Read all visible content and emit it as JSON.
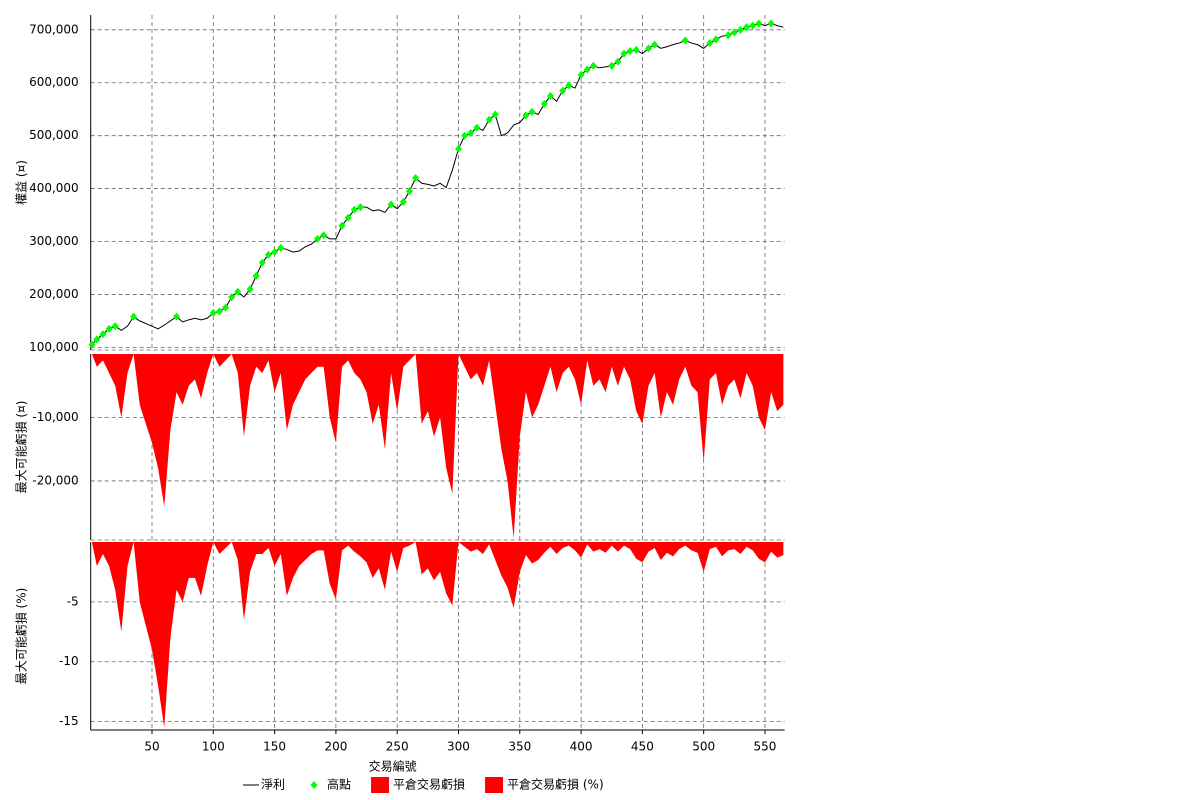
{
  "chart_data": [
    {
      "type": "line",
      "ylabel": "權益 (¤)",
      "xlim": [
        0,
        566
      ],
      "ylim": [
        95000,
        728000
      ],
      "grid": true,
      "yticks": [
        {
          "value": 100000,
          "label": "100,000"
        },
        {
          "value": 200000,
          "label": "200,000"
        },
        {
          "value": 300000,
          "label": "300,000"
        },
        {
          "value": 400000,
          "label": "400,000"
        },
        {
          "value": 500000,
          "label": "500,000"
        },
        {
          "value": 600000,
          "label": "600,000"
        },
        {
          "value": 700000,
          "label": "700,000"
        }
      ],
      "x": [
        1,
        5,
        10,
        15,
        20,
        25,
        30,
        35,
        40,
        45,
        50,
        55,
        60,
        65,
        70,
        75,
        80,
        85,
        90,
        95,
        100,
        105,
        110,
        115,
        120,
        125,
        130,
        135,
        140,
        145,
        150,
        155,
        160,
        165,
        170,
        175,
        180,
        185,
        190,
        195,
        200,
        205,
        210,
        215,
        220,
        225,
        230,
        235,
        240,
        245,
        250,
        255,
        260,
        265,
        270,
        275,
        280,
        285,
        290,
        295,
        300,
        305,
        310,
        315,
        320,
        325,
        330,
        335,
        340,
        345,
        350,
        355,
        360,
        365,
        370,
        375,
        380,
        385,
        390,
        395,
        400,
        405,
        410,
        415,
        420,
        425,
        430,
        435,
        440,
        445,
        450,
        455,
        460,
        465,
        470,
        475,
        480,
        485,
        490,
        495,
        500,
        505,
        510,
        515,
        520,
        525,
        530,
        535,
        540,
        545,
        550,
        555,
        560,
        565
      ],
      "series": [
        {
          "name": "淨利",
          "type": "line",
          "color": "#000000",
          "values": [
            105000,
            115000,
            125000,
            135000,
            140000,
            132000,
            140000,
            158000,
            150000,
            145000,
            140000,
            135000,
            142000,
            150000,
            158000,
            148000,
            152000,
            155000,
            152000,
            155000,
            165000,
            168000,
            175000,
            195000,
            205000,
            195000,
            210000,
            235000,
            260000,
            275000,
            280000,
            288000,
            285000,
            280000,
            282000,
            290000,
            295000,
            305000,
            312000,
            305000,
            305000,
            330000,
            345000,
            360000,
            365000,
            365000,
            358000,
            360000,
            355000,
            370000,
            362000,
            375000,
            395000,
            420000,
            410000,
            408000,
            405000,
            410000,
            402000,
            435000,
            475000,
            500000,
            505000,
            515000,
            510000,
            530000,
            540000,
            500000,
            505000,
            520000,
            525000,
            538000,
            545000,
            540000,
            560000,
            575000,
            565000,
            585000,
            595000,
            590000,
            615000,
            625000,
            632000,
            628000,
            630000,
            632000,
            640000,
            655000,
            660000,
            662000,
            655000,
            665000,
            672000,
            665000,
            668000,
            672000,
            675000,
            680000,
            675000,
            672000,
            665000,
            675000,
            682000,
            688000,
            690000,
            695000,
            700000,
            705000,
            708000,
            712000,
            708000,
            712000,
            708000,
            705000
          ]
        },
        {
          "name": "高點",
          "type": "scatter",
          "color": "#00ff00",
          "x": [
            1,
            5,
            10,
            15,
            20,
            35,
            70,
            100,
            105,
            110,
            115,
            120,
            130,
            135,
            140,
            145,
            150,
            155,
            185,
            190,
            205,
            210,
            215,
            220,
            245,
            255,
            260,
            265,
            300,
            305,
            310,
            315,
            325,
            330,
            355,
            360,
            370,
            375,
            385,
            390,
            400,
            405,
            410,
            425,
            430,
            435,
            440,
            445,
            455,
            460,
            485,
            505,
            510,
            520,
            525,
            530,
            535,
            540,
            545,
            555
          ],
          "values": [
            105000,
            115000,
            125000,
            135000,
            140000,
            158000,
            158000,
            165000,
            168000,
            175000,
            195000,
            205000,
            210000,
            235000,
            260000,
            275000,
            280000,
            288000,
            305000,
            312000,
            330000,
            345000,
            360000,
            365000,
            370000,
            375000,
            395000,
            420000,
            475000,
            500000,
            505000,
            515000,
            530000,
            540000,
            538000,
            545000,
            560000,
            575000,
            585000,
            595000,
            615000,
            625000,
            632000,
            632000,
            640000,
            655000,
            660000,
            662000,
            665000,
            672000,
            680000,
            675000,
            682000,
            690000,
            695000,
            700000,
            705000,
            708000,
            712000,
            712000
          ]
        }
      ]
    },
    {
      "type": "area",
      "ylabel": "最大可能虧損 (¤)",
      "xlim": [
        0,
        566
      ],
      "ylim": [
        -29300,
        0
      ],
      "grid": true,
      "yticks": [
        {
          "value": -10000,
          "label": "-10,000"
        },
        {
          "value": -20000,
          "label": "-20,000"
        }
      ],
      "x": [
        1,
        5,
        10,
        15,
        20,
        25,
        30,
        35,
        40,
        45,
        50,
        55,
        60,
        65,
        70,
        75,
        80,
        85,
        90,
        95,
        100,
        105,
        110,
        115,
        120,
        125,
        130,
        135,
        140,
        145,
        150,
        155,
        160,
        165,
        170,
        175,
        180,
        185,
        190,
        195,
        200,
        205,
        210,
        215,
        220,
        225,
        230,
        235,
        240,
        245,
        250,
        255,
        260,
        265,
        270,
        275,
        280,
        285,
        290,
        295,
        300,
        305,
        310,
        315,
        320,
        325,
        330,
        335,
        340,
        345,
        350,
        355,
        360,
        365,
        370,
        375,
        380,
        385,
        390,
        395,
        400,
        405,
        410,
        415,
        420,
        425,
        430,
        435,
        440,
        445,
        450,
        455,
        460,
        465,
        470,
        475,
        480,
        485,
        490,
        495,
        500,
        505,
        510,
        515,
        520,
        525,
        530,
        535,
        540,
        545,
        550,
        555,
        560,
        565
      ],
      "series": [
        {
          "name": "平倉交易虧損",
          "color": "#ff0000",
          "values": [
            0,
            -2000,
            -1000,
            -3000,
            -5000,
            -10000,
            -3000,
            0,
            -8000,
            -11000,
            -14000,
            -18000,
            -24000,
            -12000,
            -6000,
            -8000,
            -5000,
            -4000,
            -7000,
            -3000,
            0,
            -2000,
            -1000,
            0,
            -3000,
            -13000,
            -5000,
            -2000,
            -3000,
            -1000,
            -6000,
            -3000,
            -12000,
            -8000,
            -6000,
            -4000,
            -3000,
            -2000,
            -2000,
            -10000,
            -14000,
            -2000,
            -1000,
            -3000,
            -4000,
            -6000,
            -11000,
            -8000,
            -15000,
            -3000,
            -9000,
            -2000,
            -1000,
            0,
            -11000,
            -9000,
            -13000,
            -10000,
            -18000,
            -22000,
            0,
            -2000,
            -4000,
            -3000,
            -5000,
            -1000,
            -8000,
            -15000,
            -20000,
            -29000,
            -13000,
            -6000,
            -10000,
            -8000,
            -5000,
            -2000,
            -6000,
            -3000,
            -2000,
            -4000,
            -8000,
            -1000,
            -5000,
            -4000,
            -6000,
            -2000,
            -5000,
            -2000,
            -4000,
            -9000,
            -11000,
            -5000,
            -3000,
            -10000,
            -6000,
            -8000,
            -4000,
            -2000,
            -5000,
            -6000,
            -17000,
            -4000,
            -3000,
            -8000,
            -5000,
            -4000,
            -7000,
            -3000,
            -5000,
            -10000,
            -12000,
            -6000,
            -9000,
            -8000
          ]
        }
      ]
    },
    {
      "type": "area",
      "ylabel": "最大可能虧損 (%)",
      "xlabel": "交易編號",
      "xlim": [
        0,
        566
      ],
      "ylim": [
        -15.7,
        0
      ],
      "grid": true,
      "yticks": [
        -5,
        -10,
        -15
      ],
      "xticks": [
        50,
        100,
        150,
        200,
        250,
        300,
        350,
        400,
        450,
        500,
        550
      ],
      "x": [
        1,
        5,
        10,
        15,
        20,
        25,
        30,
        35,
        40,
        45,
        50,
        55,
        60,
        65,
        70,
        75,
        80,
        85,
        90,
        95,
        100,
        105,
        110,
        115,
        120,
        125,
        130,
        135,
        140,
        145,
        150,
        155,
        160,
        165,
        170,
        175,
        180,
        185,
        190,
        195,
        200,
        205,
        210,
        215,
        220,
        225,
        230,
        235,
        240,
        245,
        250,
        255,
        260,
        265,
        270,
        275,
        280,
        285,
        290,
        295,
        300,
        305,
        310,
        315,
        320,
        325,
        330,
        335,
        340,
        345,
        350,
        355,
        360,
        365,
        370,
        375,
        380,
        385,
        390,
        395,
        400,
        405,
        410,
        415,
        420,
        425,
        430,
        435,
        440,
        445,
        450,
        455,
        460,
        465,
        470,
        475,
        480,
        485,
        490,
        495,
        500,
        505,
        510,
        515,
        520,
        525,
        530,
        535,
        540,
        545,
        550,
        555,
        560,
        565
      ],
      "series": [
        {
          "name": "平倉交易虧損 (%)",
          "color": "#ff0000",
          "values": [
            0,
            -2,
            -1,
            -2,
            -4,
            -7.5,
            -2,
            0,
            -5,
            -7,
            -9,
            -12,
            -15.5,
            -8,
            -4,
            -5,
            -3,
            -3,
            -4.5,
            -2,
            0,
            -1,
            -0.5,
            0,
            -1.5,
            -6.5,
            -2.5,
            -1,
            -1,
            -0.5,
            -2,
            -1,
            -4.5,
            -3,
            -2,
            -1.5,
            -1,
            -0.7,
            -0.7,
            -3.5,
            -4.8,
            -0.7,
            -0.3,
            -0.8,
            -1.2,
            -1.7,
            -3,
            -2.2,
            -4,
            -0.8,
            -2.5,
            -0.5,
            -0.3,
            0,
            -2.7,
            -2.2,
            -3.2,
            -2.5,
            -4.3,
            -5.3,
            0,
            -0.4,
            -0.8,
            -0.6,
            -1,
            -0.2,
            -1.5,
            -2.8,
            -3.8,
            -5.5,
            -2.5,
            -1.1,
            -1.8,
            -1.5,
            -0.9,
            -0.4,
            -1,
            -0.5,
            -0.3,
            -0.7,
            -1.3,
            -0.2,
            -0.8,
            -0.6,
            -0.9,
            -0.3,
            -0.8,
            -0.3,
            -0.6,
            -1.4,
            -1.7,
            -0.8,
            -0.5,
            -1.5,
            -0.9,
            -1.2,
            -0.6,
            -0.3,
            -0.7,
            -0.9,
            -2.5,
            -0.6,
            -0.4,
            -1.2,
            -0.7,
            -0.6,
            -1,
            -0.4,
            -0.7,
            -1.4,
            -1.7,
            -0.8,
            -1.3,
            -1.1
          ]
        }
      ]
    }
  ]
}
